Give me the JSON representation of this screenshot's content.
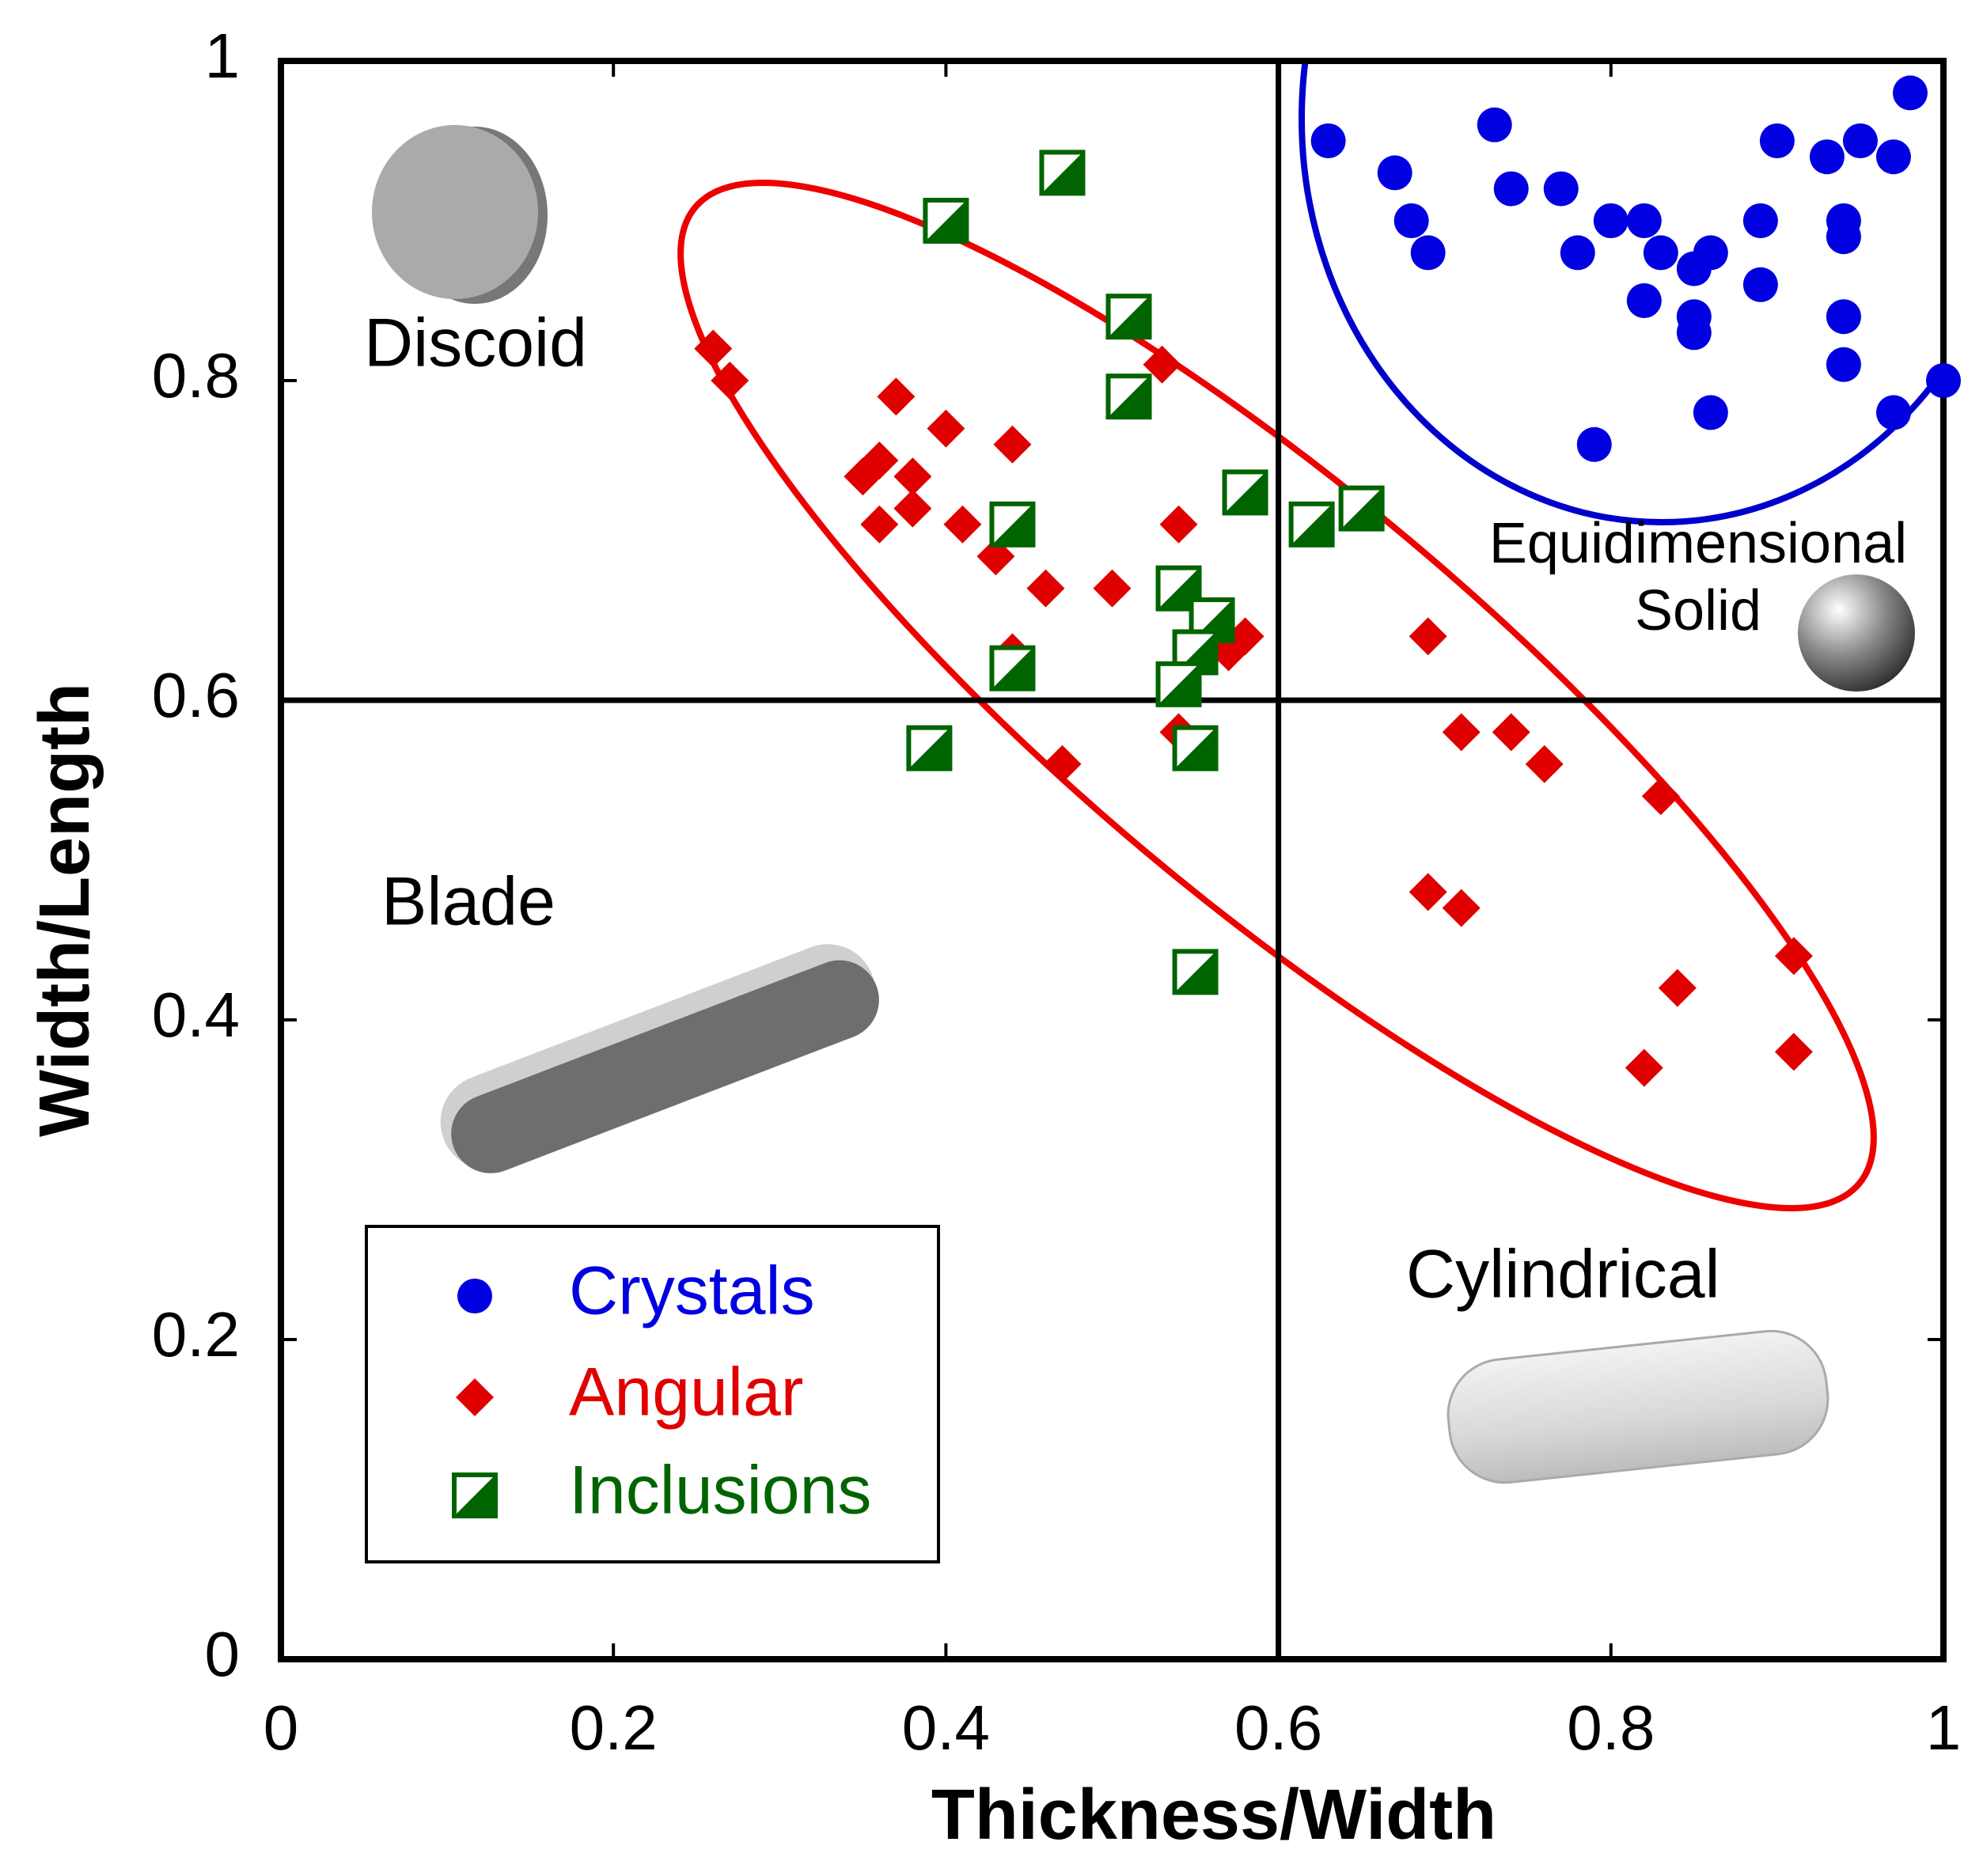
{
  "chart_data": {
    "type": "scatter",
    "xlabel": "Thickness/Width",
    "ylabel": "Width/Length",
    "xlim": [
      0,
      1
    ],
    "ylim": [
      0,
      1
    ],
    "xticks": [
      0,
      0.2,
      0.4,
      0.6,
      0.8,
      1
    ],
    "yticks": [
      0,
      0.2,
      0.4,
      0.6,
      0.8,
      1
    ],
    "annotations": [
      "Discoid",
      "Blade",
      "Cylindrical",
      "Equidimensional",
      "Solid"
    ],
    "series": [
      {
        "name": "Crystals",
        "color": "#0000e0",
        "marker": "circle",
        "x": [
          0.63,
          0.67,
          0.68,
          0.69,
          0.73,
          0.74,
          0.77,
          0.78,
          0.8,
          0.82,
          0.83,
          0.82,
          0.85,
          0.86,
          0.85,
          0.85,
          0.86,
          0.79,
          0.89,
          0.89,
          0.9,
          0.93,
          0.95,
          0.97,
          0.98,
          0.94,
          0.94,
          0.94,
          0.94,
          0.97,
          1.0
        ],
        "values": [
          0.95,
          0.93,
          0.9,
          0.88,
          0.96,
          0.92,
          0.92,
          0.88,
          0.9,
          0.9,
          0.88,
          0.85,
          0.87,
          0.88,
          0.84,
          0.83,
          0.78,
          0.76,
          0.9,
          0.86,
          0.95,
          0.94,
          0.95,
          0.94,
          0.98,
          0.9,
          0.89,
          0.84,
          0.81,
          0.78,
          0.8
        ]
      },
      {
        "name": "Angular",
        "color": "#e00000",
        "marker": "diamond",
        "x": [
          0.26,
          0.27,
          0.37,
          0.4,
          0.44,
          0.35,
          0.36,
          0.38,
          0.38,
          0.36,
          0.41,
          0.43,
          0.46,
          0.5,
          0.54,
          0.53,
          0.44,
          0.57,
          0.58,
          0.54,
          0.47,
          0.69,
          0.71,
          0.74,
          0.76,
          0.83,
          0.69,
          0.71,
          0.91,
          0.84,
          0.82,
          0.91
        ],
        "values": [
          0.82,
          0.8,
          0.79,
          0.77,
          0.76,
          0.74,
          0.75,
          0.74,
          0.72,
          0.71,
          0.71,
          0.69,
          0.67,
          0.67,
          0.71,
          0.81,
          0.63,
          0.63,
          0.64,
          0.58,
          0.56,
          0.64,
          0.58,
          0.58,
          0.56,
          0.54,
          0.48,
          0.47,
          0.44,
          0.42,
          0.37,
          0.38
        ]
      },
      {
        "name": "Inclusions",
        "color": "#006400",
        "marker": "half-square",
        "x": [
          0.47,
          0.4,
          0.51,
          0.51,
          0.58,
          0.44,
          0.62,
          0.65,
          0.54,
          0.56,
          0.55,
          0.54,
          0.44,
          0.39,
          0.55,
          0.55
        ],
        "values": [
          0.93,
          0.9,
          0.84,
          0.79,
          0.73,
          0.71,
          0.71,
          0.72,
          0.67,
          0.65,
          0.63,
          0.61,
          0.62,
          0.57,
          0.57,
          0.43
        ]
      }
    ]
  }
}
